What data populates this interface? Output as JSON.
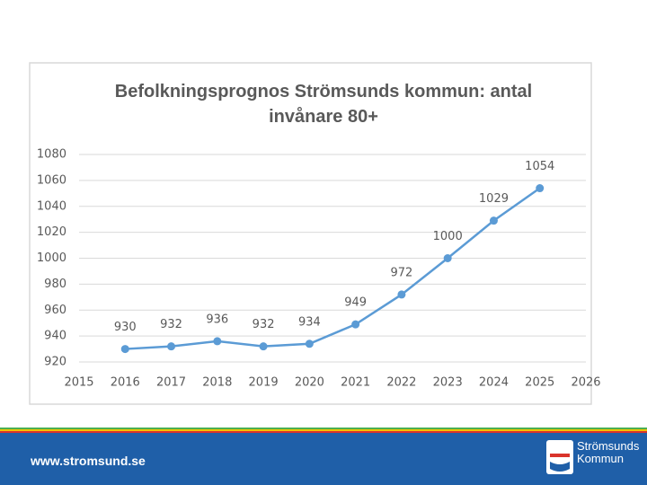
{
  "chart_data": {
    "type": "line",
    "title": "Befolkningsprognos Strömsunds kommun: antal invånare 80+",
    "x": [
      2016,
      2017,
      2018,
      2019,
      2020,
      2021,
      2022,
      2023,
      2024,
      2025
    ],
    "series": [
      {
        "name": "antal invånare 80+",
        "color": "#5b9bd5",
        "values": [
          930,
          932,
          936,
          932,
          934,
          949,
          972,
          1000,
          1029,
          1054
        ]
      }
    ],
    "xlim": [
      2015,
      2026
    ],
    "xticks": [
      2015,
      2016,
      2017,
      2018,
      2019,
      2020,
      2021,
      2022,
      2023,
      2024,
      2025,
      2026
    ],
    "ylim": [
      920,
      1080
    ],
    "yticks": [
      920,
      940,
      960,
      980,
      1000,
      1020,
      1040,
      1060,
      1080
    ],
    "grid": true
  },
  "footer": {
    "url": "www.stromsund.se",
    "logo": [
      "Strömsunds",
      "Kommun"
    ]
  }
}
